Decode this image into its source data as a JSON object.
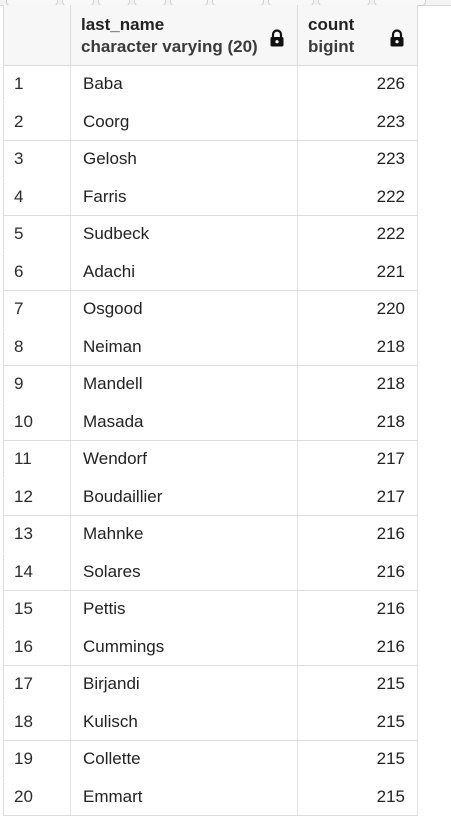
{
  "columns": [
    {
      "name": "last_name",
      "type": "character varying (20)",
      "icon": "lock-icon"
    },
    {
      "name": "count",
      "type": "bigint",
      "icon": "lock-icon"
    }
  ],
  "rows": [
    {
      "n": "1",
      "last_name": "Baba",
      "count": "226"
    },
    {
      "n": "2",
      "last_name": "Coorg",
      "count": "223"
    },
    {
      "n": "3",
      "last_name": "Gelosh",
      "count": "223"
    },
    {
      "n": "4",
      "last_name": "Farris",
      "count": "222"
    },
    {
      "n": "5",
      "last_name": "Sudbeck",
      "count": "222"
    },
    {
      "n": "6",
      "last_name": "Adachi",
      "count": "221"
    },
    {
      "n": "7",
      "last_name": "Osgood",
      "count": "220"
    },
    {
      "n": "8",
      "last_name": "Neiman",
      "count": "218"
    },
    {
      "n": "9",
      "last_name": "Mandell",
      "count": "218"
    },
    {
      "n": "10",
      "last_name": "Masada",
      "count": "218"
    },
    {
      "n": "11",
      "last_name": "Wendorf",
      "count": "217"
    },
    {
      "n": "12",
      "last_name": "Boudaillier",
      "count": "217"
    },
    {
      "n": "13",
      "last_name": "Mahnke",
      "count": "216"
    },
    {
      "n": "14",
      "last_name": "Solares",
      "count": "216"
    },
    {
      "n": "15",
      "last_name": "Pettis",
      "count": "216"
    },
    {
      "n": "16",
      "last_name": "Cummings",
      "count": "216"
    },
    {
      "n": "17",
      "last_name": "Birjandi",
      "count": "215"
    },
    {
      "n": "18",
      "last_name": "Kulisch",
      "count": "215"
    },
    {
      "n": "19",
      "last_name": "Collette",
      "count": "215"
    },
    {
      "n": "20",
      "last_name": "Emmart",
      "count": "215"
    }
  ]
}
